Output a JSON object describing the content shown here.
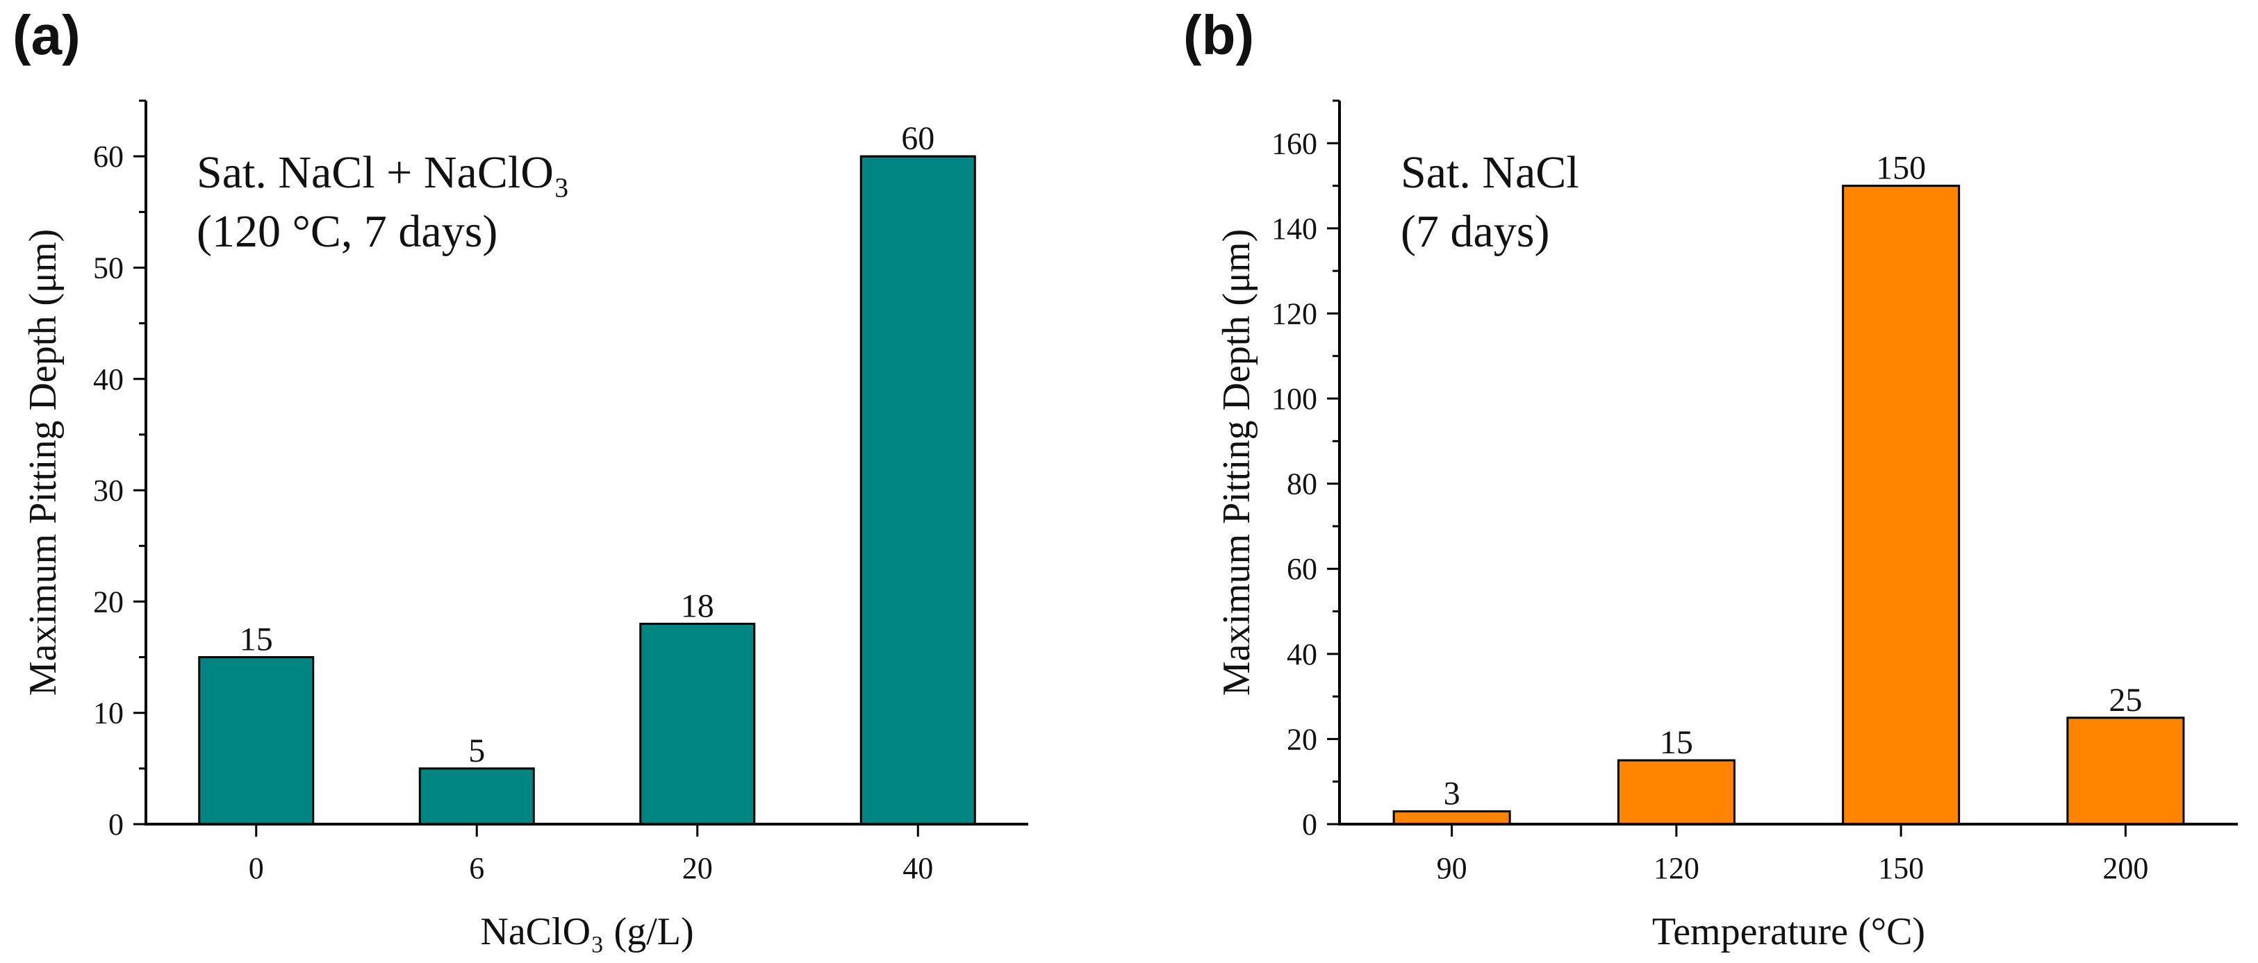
{
  "chart_data": [
    {
      "type": "bar",
      "panel_label": "(a)",
      "annotation": [
        "Sat. NaCl + NaClO₃",
        "(120 °C, 7 days)"
      ],
      "xlabel": "NaClO₃ (g/L)",
      "ylabel": "Maximum Pitting Depth (μm)",
      "categories": [
        "0",
        "6",
        "20",
        "40"
      ],
      "values": [
        15,
        5,
        18,
        60
      ],
      "data_labels": [
        "15",
        "5",
        "18",
        "60"
      ],
      "ylim": [
        0,
        65
      ],
      "yticks": [
        0,
        10,
        20,
        30,
        40,
        50,
        60
      ],
      "ytick_labels": [
        "0",
        "10",
        "20",
        "30",
        "40",
        "50",
        "60"
      ],
      "color": "#008582",
      "grid": false,
      "legend": "none"
    },
    {
      "type": "bar",
      "panel_label": "(b)",
      "annotation": [
        "Sat. NaCl",
        "(7 days)"
      ],
      "xlabel": "Temperature (°C)",
      "ylabel": "Maximum Pitting Depth (μm)",
      "categories": [
        "90",
        "120",
        "150",
        "200"
      ],
      "values": [
        3,
        15,
        150,
        25
      ],
      "data_labels": [
        "3",
        "15",
        "150",
        "25"
      ],
      "ylim": [
        0,
        170
      ],
      "yticks": [
        0,
        20,
        40,
        60,
        80,
        100,
        120,
        140,
        160
      ],
      "ytick_labels": [
        "0",
        "20",
        "40",
        "60",
        "80",
        "100",
        "120",
        "140",
        "160"
      ],
      "color": "#FF8500",
      "grid": false,
      "legend": "none"
    }
  ]
}
